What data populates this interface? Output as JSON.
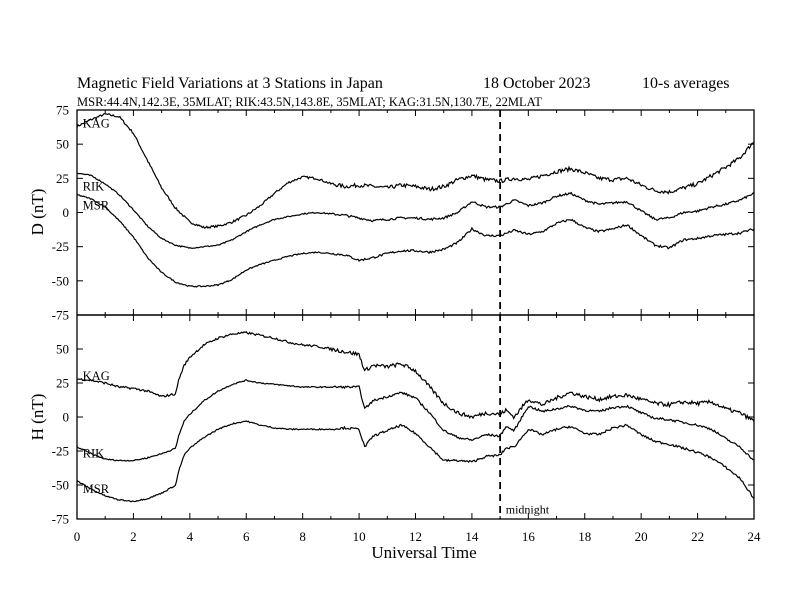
{
  "header": {
    "title": "Magnetic Field Variations at 3 Stations in Japan",
    "date": "18 October 2023",
    "averaging": "10-s averages",
    "stations_line": "MSR:44.4N,142.3E, 35MLAT;  RIK:43.5N,143.8E, 35MLAT;  KAG:31.5N,130.7E, 22MLAT"
  },
  "chart_data": [
    {
      "type": "line",
      "panel": "D",
      "ylabel": "D (nT)",
      "ylim": [
        -75,
        75
      ],
      "yticks": [
        75,
        50,
        25,
        0,
        -25,
        -50,
        -75
      ],
      "xlim": [
        0,
        24
      ],
      "series": [
        {
          "name": "KAG",
          "x": [
            0,
            0.5,
            1,
            1.5,
            2,
            2.5,
            3,
            3.5,
            4,
            4.5,
            5,
            5.5,
            6,
            6.5,
            7,
            7.5,
            8,
            8.5,
            9,
            9.5,
            10,
            10.5,
            11,
            11.5,
            12,
            12.5,
            13,
            13.5,
            14,
            14.5,
            15,
            15.5,
            16,
            16.5,
            17,
            17.5,
            18,
            18.5,
            19,
            19.5,
            20,
            20.5,
            21,
            21.5,
            22,
            22.5,
            23,
            23.5,
            24
          ],
          "y": [
            63,
            68,
            72,
            70,
            58,
            38,
            18,
            3,
            -7,
            -11,
            -10,
            -7,
            -2,
            5,
            14,
            22,
            26,
            25,
            21,
            19,
            20,
            19,
            18,
            20,
            19,
            17,
            19,
            24,
            27,
            24,
            23,
            25,
            24,
            27,
            30,
            32,
            29,
            25,
            24,
            25,
            20,
            16,
            15,
            18,
            21,
            27,
            33,
            40,
            52
          ]
        },
        {
          "name": "RIK",
          "x": [
            0,
            0.5,
            1,
            1.5,
            2,
            2.5,
            3,
            3.5,
            4,
            4.5,
            5,
            5.5,
            6,
            6.5,
            7,
            7.5,
            8,
            8.5,
            9,
            9.5,
            10,
            10.5,
            11,
            11.5,
            12,
            12.5,
            13,
            13.5,
            14,
            14.5,
            15,
            15.5,
            16,
            16.5,
            17,
            17.5,
            18,
            18.5,
            19,
            19.5,
            20,
            20.5,
            21,
            21.5,
            22,
            22.5,
            23,
            23.5,
            24
          ],
          "y": [
            29,
            27,
            21,
            13,
            2,
            -10,
            -19,
            -24,
            -26,
            -25,
            -24,
            -20,
            -14,
            -9,
            -5,
            -3,
            -1,
            0,
            -1,
            -2,
            -4,
            -6,
            -5,
            -4,
            -4,
            -5,
            -4,
            0,
            8,
            4,
            4,
            9,
            5,
            7,
            12,
            14,
            9,
            6,
            7,
            8,
            1,
            -5,
            -4,
            0,
            1,
            4,
            6,
            9,
            14
          ]
        },
        {
          "name": "MSR",
          "x": [
            0,
            0.5,
            1,
            1.5,
            2,
            2.5,
            3,
            3.5,
            4,
            4.5,
            5,
            5.5,
            6,
            6.5,
            7,
            7.5,
            8,
            8.5,
            9,
            9.5,
            10,
            10.5,
            11,
            11.5,
            12,
            12.5,
            13,
            13.5,
            14,
            14.5,
            15,
            15.5,
            16,
            16.5,
            17,
            17.5,
            18,
            18.5,
            19,
            19.5,
            20,
            20.5,
            21,
            21.5,
            22,
            22.5,
            23,
            23.5,
            24
          ],
          "y": [
            13,
            10,
            4,
            -6,
            -18,
            -33,
            -44,
            -51,
            -54,
            -54,
            -53,
            -49,
            -42,
            -38,
            -35,
            -32,
            -30,
            -29,
            -30,
            -31,
            -35,
            -33,
            -30,
            -28,
            -28,
            -29,
            -27,
            -22,
            -12,
            -17,
            -17,
            -13,
            -16,
            -14,
            -8,
            -5,
            -11,
            -14,
            -12,
            -9,
            -17,
            -24,
            -26,
            -20,
            -19,
            -17,
            -16,
            -15,
            -12
          ]
        }
      ],
      "labels": [
        {
          "text": "KAG",
          "x": 0.2,
          "y": 65
        },
        {
          "text": "RIK",
          "x": 0.2,
          "y": 19
        },
        {
          "text": "MSR",
          "x": 0.2,
          "y": 5
        }
      ]
    },
    {
      "type": "line",
      "panel": "H",
      "ylabel": "H (nT)",
      "ylim": [
        -75,
        75
      ],
      "yticks": [
        50,
        25,
        0,
        -25,
        -50,
        -75
      ],
      "xlim": [
        0,
        24
      ],
      "xticks": [
        0,
        2,
        4,
        6,
        8,
        10,
        12,
        14,
        16,
        18,
        20,
        22,
        24
      ],
      "xlabel": "Universal Time",
      "series": [
        {
          "name": "KAG",
          "x": [
            0,
            0.5,
            1,
            1.5,
            2,
            2.5,
            3,
            3.5,
            3.6,
            3.8,
            4,
            4.5,
            5,
            5.5,
            6,
            6.5,
            7,
            7.5,
            8,
            8.5,
            9,
            9.5,
            10,
            10.2,
            10.5,
            11,
            11.5,
            12,
            12.5,
            13,
            13.5,
            14,
            14.5,
            15,
            15.2,
            15.5,
            16,
            16.5,
            17,
            17.5,
            18,
            18.5,
            19,
            19.5,
            20,
            20.5,
            21,
            21.5,
            22,
            22.5,
            23,
            23.5,
            24
          ],
          "y": [
            28,
            27,
            25,
            22,
            21,
            19,
            15,
            17,
            27,
            38,
            44,
            53,
            58,
            61,
            62,
            60,
            58,
            55,
            53,
            52,
            50,
            48,
            46,
            34,
            38,
            37,
            39,
            34,
            22,
            10,
            3,
            0,
            3,
            2,
            5,
            0,
            13,
            9,
            14,
            18,
            15,
            13,
            15,
            16,
            13,
            10,
            9,
            11,
            10,
            11,
            6,
            3,
            -3
          ]
        },
        {
          "name": "RIK",
          "x": [
            0,
            0.5,
            1,
            1.5,
            2,
            2.5,
            3,
            3.5,
            3.6,
            3.8,
            4,
            4.5,
            5,
            5.5,
            6,
            6.5,
            7,
            7.5,
            8,
            8.5,
            9,
            9.5,
            10,
            10.2,
            10.5,
            11,
            11.5,
            12,
            12.5,
            13,
            13.5,
            14,
            14.5,
            15,
            15.2,
            15.5,
            16,
            16.5,
            17,
            17.5,
            18,
            18.5,
            19,
            19.5,
            20,
            20.5,
            21,
            21.5,
            22,
            22.5,
            23,
            23.5,
            24
          ],
          "y": [
            -22,
            -27,
            -31,
            -32,
            -32,
            -30,
            -27,
            -23,
            -14,
            -3,
            2,
            12,
            19,
            24,
            27,
            25,
            24,
            23,
            22,
            22,
            22,
            22,
            22,
            6,
            12,
            15,
            18,
            14,
            3,
            -10,
            -15,
            -17,
            -13,
            -14,
            -7,
            -10,
            8,
            4,
            6,
            8,
            5,
            4,
            7,
            8,
            3,
            -1,
            -2,
            -4,
            -6,
            -9,
            -16,
            -22,
            -32
          ]
        },
        {
          "name": "MSR",
          "x": [
            0,
            0.5,
            1,
            1.5,
            2,
            2.5,
            3,
            3.5,
            3.6,
            3.8,
            4,
            4.5,
            5,
            5.5,
            6,
            6.5,
            7,
            7.5,
            8,
            8.5,
            9,
            9.5,
            10,
            10.2,
            10.5,
            11,
            11.5,
            12,
            12.5,
            13,
            13.5,
            14,
            14.5,
            15,
            15.2,
            15.5,
            16,
            16.5,
            17,
            17.5,
            18,
            18.5,
            19,
            19.5,
            20,
            20.5,
            21,
            21.5,
            22,
            22.5,
            23,
            23.5,
            24
          ],
          "y": [
            -47,
            -53,
            -58,
            -61,
            -62,
            -60,
            -56,
            -50,
            -40,
            -28,
            -23,
            -15,
            -9,
            -5,
            -3,
            -6,
            -8,
            -9,
            -9,
            -9,
            -9,
            -8,
            -9,
            -22,
            -14,
            -10,
            -6,
            -12,
            -22,
            -32,
            -32,
            -33,
            -29,
            -28,
            -23,
            -22,
            -9,
            -13,
            -9,
            -7,
            -12,
            -13,
            -8,
            -6,
            -13,
            -18,
            -20,
            -23,
            -26,
            -30,
            -37,
            -45,
            -60
          ]
        }
      ],
      "labels": [
        {
          "text": "KAG",
          "x": 0.2,
          "y": 30
        },
        {
          "text": "RIK",
          "x": 0.2,
          "y": -27
        },
        {
          "text": "MSR",
          "x": 0.2,
          "y": -53
        }
      ],
      "annotations": [
        {
          "text": "midnight",
          "x": 15.2,
          "y": -68
        }
      ]
    }
  ],
  "midnight_line_ut": 15
}
